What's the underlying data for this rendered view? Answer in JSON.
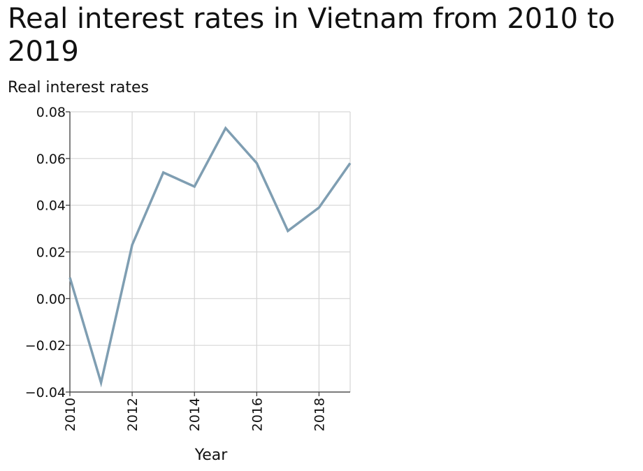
{
  "chart_data": {
    "type": "line",
    "title": "Real interest rates in Vietnam from 2010 to 2019",
    "xlabel": "Year",
    "ylabel": "Real interest rates",
    "x": [
      2010,
      2011,
      2012,
      2013,
      2014,
      2015,
      2016,
      2017,
      2018,
      2019
    ],
    "series": [
      {
        "values": [
          0.009,
          -0.036,
          0.023,
          0.054,
          0.048,
          0.073,
          0.058,
          0.029,
          0.039,
          0.058
        ]
      }
    ],
    "xlim": [
      2010,
      2019
    ],
    "ylim": [
      -0.04,
      0.08
    ],
    "xticks": [
      2010,
      2012,
      2014,
      2016,
      2018
    ],
    "xtick_labels": [
      "2010",
      "2012",
      "2014",
      "2016",
      "2018"
    ],
    "yticks": [
      -0.04,
      -0.02,
      0.0,
      0.02,
      0.04,
      0.06,
      0.08
    ],
    "ytick_labels": [
      "−0.04",
      "−0.02",
      "0.00",
      "0.02",
      "0.04",
      "0.06",
      "0.08"
    ],
    "grid": true,
    "line_color": "#7f9eb2"
  }
}
